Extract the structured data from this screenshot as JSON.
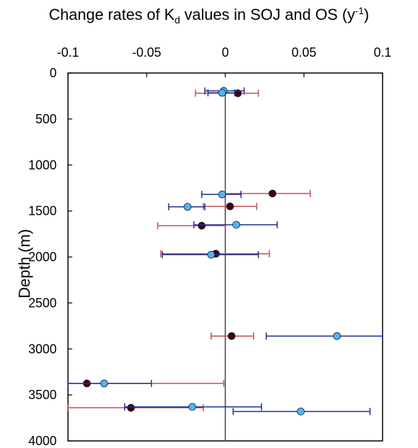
{
  "chart_data": {
    "type": "scatter",
    "title": {
      "pre": "Change rates of K",
      "sub": "d",
      "mid": " values in SOJ and OS (y",
      "sup": "-1",
      "post": ")"
    },
    "xlabel": "",
    "ylabel": "Depth (m)",
    "xlim": [
      -0.1,
      0.1
    ],
    "ylim": [
      0,
      4000
    ],
    "y_inverted": true,
    "x_axis_position": "top",
    "x_ticks": [
      -0.1,
      -0.05,
      0,
      0.05,
      0.1
    ],
    "x_tick_labels": [
      "-0.1",
      "-0.05",
      "0",
      "0.05",
      "0.1"
    ],
    "y_ticks": [
      0,
      500,
      1000,
      1500,
      2000,
      2500,
      3000,
      3500,
      4000
    ],
    "y_tick_labels": [
      "0",
      "500",
      "1000",
      "1500",
      "2000",
      "2500",
      "3000",
      "3500",
      "4000"
    ],
    "zero_line": true,
    "grid": false,
    "series": [
      {
        "color": "#3f0408",
        "error_color": "#c0504d",
        "points": [
          {
            "depth": 220,
            "x": 0.008,
            "xmin": -0.019,
            "xmax": 0.021
          },
          {
            "depth": 1310,
            "x": 0.03,
            "xmin": 0.0,
            "xmax": 0.054
          },
          {
            "depth": 1450,
            "x": 0.003,
            "xmin": -0.014,
            "xmax": 0.02
          },
          {
            "depth": 1660,
            "x": -0.015,
            "xmin": -0.043,
            "xmax": 0.0
          },
          {
            "depth": 1965,
            "x": -0.006,
            "xmin": -0.041,
            "xmax": 0.028
          },
          {
            "depth": 2860,
            "x": 0.004,
            "xmin": -0.009,
            "xmax": 0.018
          },
          {
            "depth": 3375,
            "x": -0.088,
            "xmin": -0.1,
            "xmax": -0.001
          },
          {
            "depth": 3640,
            "x": -0.06,
            "xmin": -0.1,
            "xmax": -0.014
          }
        ]
      },
      {
        "color": "#4fb4f0",
        "error_color": "#1f2f8f",
        "points": [
          {
            "depth": 195,
            "x": -0.001,
            "xmin": -0.013,
            "xmax": 0.012
          },
          {
            "depth": 215,
            "x": -0.002,
            "xmin": -0.011,
            "xmax": 0.006
          },
          {
            "depth": 1320,
            "x": -0.002,
            "xmin": -0.015,
            "xmax": 0.01
          },
          {
            "depth": 1455,
            "x": -0.024,
            "xmin": -0.036,
            "xmax": -0.013
          },
          {
            "depth": 1650,
            "x": 0.007,
            "xmin": -0.02,
            "xmax": 0.033
          },
          {
            "depth": 1975,
            "x": -0.009,
            "xmin": -0.04,
            "xmax": 0.021
          },
          {
            "depth": 2860,
            "x": 0.071,
            "xmin": 0.026,
            "xmax": 0.1
          },
          {
            "depth": 3375,
            "x": -0.077,
            "xmin": -0.1,
            "xmax": -0.047
          },
          {
            "depth": 3630,
            "x": -0.021,
            "xmin": -0.064,
            "xmax": 0.023
          },
          {
            "depth": 3680,
            "x": 0.048,
            "xmin": 0.005,
            "xmax": 0.092
          }
        ]
      }
    ]
  }
}
